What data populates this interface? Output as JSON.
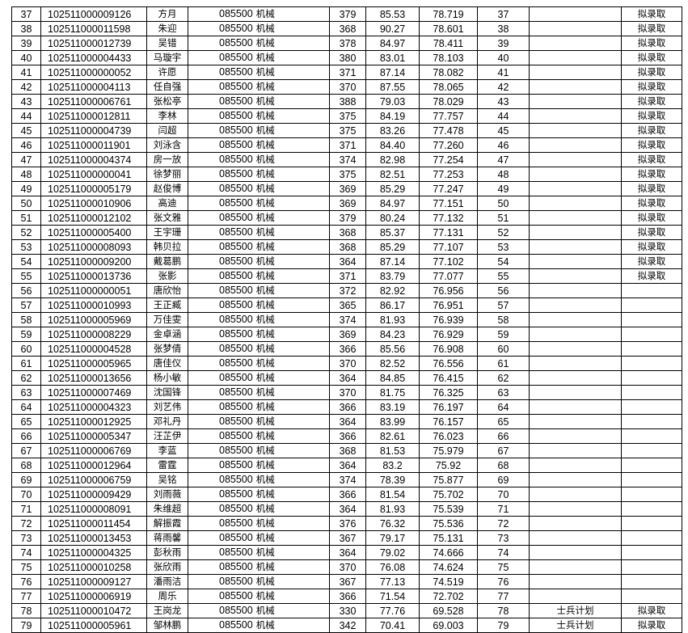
{
  "table": {
    "rows": [
      {
        "no": "37",
        "id": "102511000009126",
        "name": "方月",
        "code": "085500",
        "major": "机械",
        "score1": "379",
        "score2": "85.53",
        "total": "78.719",
        "rank": "37",
        "status": "拟录取"
      },
      {
        "no": "38",
        "id": "102511000011598",
        "name": "朱迎",
        "code": "085500",
        "major": "机械",
        "score1": "368",
        "score2": "90.27",
        "total": "78.601",
        "rank": "38",
        "status": "拟录取"
      },
      {
        "no": "39",
        "id": "102511000012739",
        "name": "吴错",
        "code": "085500",
        "major": "机械",
        "score1": "378",
        "score2": "84.97",
        "total": "78.411",
        "rank": "39",
        "status": "拟录取"
      },
      {
        "no": "40",
        "id": "102511000004433",
        "name": "马璇宇",
        "code": "085500",
        "major": "机械",
        "score1": "380",
        "score2": "83.01",
        "total": "78.103",
        "rank": "40",
        "status": "拟录取"
      },
      {
        "no": "41",
        "id": "102511000000052",
        "name": "许愿",
        "code": "085500",
        "major": "机械",
        "score1": "371",
        "score2": "87.14",
        "total": "78.082",
        "rank": "41",
        "status": "拟录取"
      },
      {
        "no": "42",
        "id": "102511000004113",
        "name": "任自强",
        "code": "085500",
        "major": "机械",
        "score1": "370",
        "score2": "87.55",
        "total": "78.065",
        "rank": "42",
        "status": "拟录取"
      },
      {
        "no": "43",
        "id": "102511000006761",
        "name": "张松亭",
        "code": "085500",
        "major": "机械",
        "score1": "388",
        "score2": "79.03",
        "total": "78.029",
        "rank": "43",
        "status": "拟录取"
      },
      {
        "no": "44",
        "id": "102511000012811",
        "name": "李林",
        "code": "085500",
        "major": "机械",
        "score1": "375",
        "score2": "84.19",
        "total": "77.757",
        "rank": "44",
        "status": "拟录取"
      },
      {
        "no": "45",
        "id": "102511000004739",
        "name": "闫超",
        "code": "085500",
        "major": "机械",
        "score1": "375",
        "score2": "83.26",
        "total": "77.478",
        "rank": "45",
        "status": "拟录取"
      },
      {
        "no": "46",
        "id": "102511000011901",
        "name": "刘泳含",
        "code": "085500",
        "major": "机械",
        "score1": "371",
        "score2": "84.40",
        "total": "77.260",
        "rank": "46",
        "status": "拟录取"
      },
      {
        "no": "47",
        "id": "102511000004374",
        "name": "房一放",
        "code": "085500",
        "major": "机械",
        "score1": "374",
        "score2": "82.98",
        "total": "77.254",
        "rank": "47",
        "status": "拟录取"
      },
      {
        "no": "48",
        "id": "102511000000041",
        "name": "徐梦丽",
        "code": "085500",
        "major": "机械",
        "score1": "375",
        "score2": "82.51",
        "total": "77.253",
        "rank": "48",
        "status": "拟录取"
      },
      {
        "no": "49",
        "id": "102511000005179",
        "name": "赵俊博",
        "code": "085500",
        "major": "机械",
        "score1": "369",
        "score2": "85.29",
        "total": "77.247",
        "rank": "49",
        "status": "拟录取"
      },
      {
        "no": "50",
        "id": "102511000010906",
        "name": "高迪",
        "code": "085500",
        "major": "机械",
        "score1": "369",
        "score2": "84.97",
        "total": "77.151",
        "rank": "50",
        "status": "拟录取"
      },
      {
        "no": "51",
        "id": "102511000012102",
        "name": "张文雅",
        "code": "085500",
        "major": "机械",
        "score1": "379",
        "score2": "80.24",
        "total": "77.132",
        "rank": "51",
        "status": "拟录取"
      },
      {
        "no": "52",
        "id": "102511000005400",
        "name": "王宇珊",
        "code": "085500",
        "major": "机械",
        "score1": "368",
        "score2": "85.37",
        "total": "77.131",
        "rank": "52",
        "status": "拟录取"
      },
      {
        "no": "53",
        "id": "102511000008093",
        "name": "韩贝拉",
        "code": "085500",
        "major": "机械",
        "score1": "368",
        "score2": "85.29",
        "total": "77.107",
        "rank": "53",
        "status": "拟录取"
      },
      {
        "no": "54",
        "id": "102511000009200",
        "name": "戴葛鹏",
        "code": "085500",
        "major": "机械",
        "score1": "364",
        "score2": "87.14",
        "total": "77.102",
        "rank": "54",
        "status": "拟录取"
      },
      {
        "no": "55",
        "id": "102511000013736",
        "name": "张影",
        "code": "085500",
        "major": "机械",
        "score1": "371",
        "score2": "83.79",
        "total": "77.077",
        "rank": "55",
        "status": "拟录取"
      },
      {
        "no": "56",
        "id": "102511000000051",
        "name": "唐欣怡",
        "code": "085500",
        "major": "机械",
        "score1": "372",
        "score2": "82.92",
        "total": "76.956",
        "rank": "56"
      },
      {
        "no": "57",
        "id": "102511000010993",
        "name": "王正臧",
        "code": "085500",
        "major": "机械",
        "score1": "365",
        "score2": "86.17",
        "total": "76.951",
        "rank": "57"
      },
      {
        "no": "58",
        "id": "102511000005969",
        "name": "万佳雯",
        "code": "085500",
        "major": "机械",
        "score1": "374",
        "score2": "81.93",
        "total": "76.939",
        "rank": "58"
      },
      {
        "no": "59",
        "id": "102511000008229",
        "name": "金卓涵",
        "code": "085500",
        "major": "机械",
        "score1": "369",
        "score2": "84.23",
        "total": "76.929",
        "rank": "59"
      },
      {
        "no": "60",
        "id": "102511000004528",
        "name": "张梦倩",
        "code": "085500",
        "major": "机械",
        "score1": "366",
        "score2": "85.56",
        "total": "76.908",
        "rank": "60"
      },
      {
        "no": "61",
        "id": "102511000005965",
        "name": "唐佳仪",
        "code": "085500",
        "major": "机械",
        "score1": "370",
        "score2": "82.52",
        "total": "76.556",
        "rank": "61"
      },
      {
        "no": "62",
        "id": "102511000013656",
        "name": "杨小敏",
        "code": "085500",
        "major": "机械",
        "score1": "364",
        "score2": "84.85",
        "total": "76.415",
        "rank": "62"
      },
      {
        "no": "63",
        "id": "102511000007469",
        "name": "沈国锋",
        "code": "085500",
        "major": "机械",
        "score1": "370",
        "score2": "81.75",
        "total": "76.325",
        "rank": "63"
      },
      {
        "no": "64",
        "id": "102511000004323",
        "name": "刘艺伟",
        "code": "085500",
        "major": "机械",
        "score1": "366",
        "score2": "83.19",
        "total": "76.197",
        "rank": "64"
      },
      {
        "no": "65",
        "id": "102511000012925",
        "name": "邓礼丹",
        "code": "085500",
        "major": "机械",
        "score1": "364",
        "score2": "83.99",
        "total": "76.157",
        "rank": "65"
      },
      {
        "no": "66",
        "id": "102511000005347",
        "name": "汪芷伊",
        "code": "085500",
        "major": "机械",
        "score1": "366",
        "score2": "82.61",
        "total": "76.023",
        "rank": "66"
      },
      {
        "no": "67",
        "id": "102511000006769",
        "name": "李蓝",
        "code": "085500",
        "major": "机械",
        "score1": "368",
        "score2": "81.53",
        "total": "75.979",
        "rank": "67"
      },
      {
        "no": "68",
        "id": "102511000012964",
        "name": "雷霆",
        "code": "085500",
        "major": "机械",
        "score1": "364",
        "score2": "83.2",
        "total": "75.92",
        "rank": "68"
      },
      {
        "no": "69",
        "id": "102511000006759",
        "name": "吴铭",
        "code": "085500",
        "major": "机械",
        "score1": "374",
        "score2": "78.39",
        "total": "75.877",
        "rank": "69"
      },
      {
        "no": "70",
        "id": "102511000009429",
        "name": "刘雨薇",
        "code": "085500",
        "major": "机械",
        "score1": "366",
        "score2": "81.54",
        "total": "75.702",
        "rank": "70"
      },
      {
        "no": "71",
        "id": "102511000008091",
        "name": "朱维超",
        "code": "085500",
        "major": "机械",
        "score1": "364",
        "score2": "81.93",
        "total": "75.539",
        "rank": "71"
      },
      {
        "no": "72",
        "id": "102511000011454",
        "name": "解振霞",
        "code": "085500",
        "major": "机械",
        "score1": "376",
        "score2": "76.32",
        "total": "75.536",
        "rank": "72"
      },
      {
        "no": "73",
        "id": "102511000013453",
        "name": "蒋雨馨",
        "code": "085500",
        "major": "机械",
        "score1": "367",
        "score2": "79.17",
        "total": "75.131",
        "rank": "73"
      },
      {
        "no": "74",
        "id": "102511000004325",
        "name": "彭秋雨",
        "code": "085500",
        "major": "机械",
        "score1": "364",
        "score2": "79.02",
        "total": "74.666",
        "rank": "74"
      },
      {
        "no": "75",
        "id": "102511000010258",
        "name": "张欣雨",
        "code": "085500",
        "major": "机械",
        "score1": "370",
        "score2": "76.08",
        "total": "74.624",
        "rank": "75"
      },
      {
        "no": "76",
        "id": "102511000009127",
        "name": "潘雨洁",
        "code": "085500",
        "major": "机械",
        "score1": "367",
        "score2": "77.13",
        "total": "74.519",
        "rank": "76"
      },
      {
        "no": "77",
        "id": "102511000006919",
        "name": "周乐",
        "code": "085500",
        "major": "机械",
        "score1": "366",
        "score2": "71.54",
        "total": "72.702",
        "rank": "77"
      },
      {
        "no": "78",
        "id": "102511000010472",
        "name": "王岗龙",
        "code": "085500",
        "major": "机械",
        "score1": "330",
        "score2": "77.76",
        "total": "69.528",
        "rank": "78",
        "note": "士兵计划",
        "status": "拟录取"
      },
      {
        "no": "79",
        "id": "102511000005961",
        "name": "邹林鹏",
        "code": "085500",
        "major": "机械",
        "score1": "342",
        "score2": "70.41",
        "total": "69.003",
        "rank": "79",
        "note": "士兵计划",
        "status": "拟录取"
      }
    ]
  }
}
